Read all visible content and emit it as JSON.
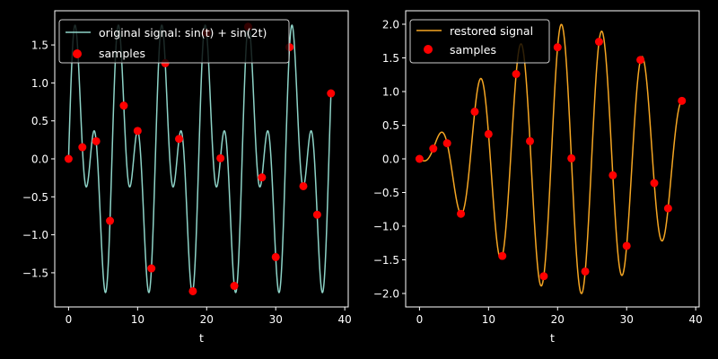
{
  "chart_data": [
    {
      "type": "line",
      "title": "",
      "xlabel": "t",
      "ylabel": "",
      "xlim": [
        -2,
        40.5
      ],
      "ylim": [
        -1.95,
        1.95
      ],
      "xticks": [
        0,
        10,
        20,
        30,
        40
      ],
      "yticks": [
        -1.5,
        -1.0,
        -0.5,
        0.0,
        0.5,
        1.0,
        1.5
      ],
      "xtick_labels": [
        "0",
        "10",
        "20",
        "30",
        "40"
      ],
      "ytick_labels": [
        "−1.5",
        "−1.0",
        "−0.5",
        "0.0",
        "0.5",
        "1.0",
        "1.5"
      ],
      "legend_position": "top-left",
      "series": [
        {
          "name": "original signal: sin(t) + sin(2t)",
          "legend_label": "original signal: sin(t) + sin(2t)",
          "kind": "line",
          "color": "#8dd3c7",
          "formula": "sin(t)+sin(2t)",
          "t_range": [
            0,
            38
          ]
        },
        {
          "name": "samples",
          "legend_label": "samples",
          "kind": "scatter",
          "color": "#ff0000",
          "x": [
            0,
            2,
            4,
            6,
            8,
            10,
            12,
            14,
            16,
            18,
            20,
            22,
            24,
            26,
            28,
            30,
            32,
            34,
            36,
            38
          ],
          "y": [
            0.0,
            0.153,
            0.232,
            -0.816,
            0.701,
            0.368,
            -1.442,
            1.26,
            0.263,
            -1.743,
            1.658,
            0.008,
            -1.673,
            1.74,
            -0.244,
            -1.293,
            1.47,
            -0.36,
            -0.735,
            0.862
          ]
        }
      ]
    },
    {
      "type": "line",
      "title": "",
      "xlabel": "t",
      "ylabel": "",
      "xlim": [
        -2,
        40.5
      ],
      "ylim": [
        -2.2,
        2.2
      ],
      "xticks": [
        0,
        10,
        20,
        30,
        40
      ],
      "yticks": [
        -2.0,
        -1.5,
        -1.0,
        -0.5,
        0.0,
        0.5,
        1.0,
        1.5,
        2.0
      ],
      "xtick_labels": [
        "0",
        "10",
        "20",
        "30",
        "40"
      ],
      "ytick_labels": [
        "−2.0",
        "−1.5",
        "−1.0",
        "−0.5",
        "0.0",
        "0.5",
        "1.0",
        "1.5",
        "2.0"
      ],
      "legend_position": "top-left",
      "series": [
        {
          "name": "restored signal",
          "legend_label": "restored signal",
          "kind": "line",
          "color": "#f5a623",
          "formula": "sinc-interpolation of samples",
          "t_range": [
            0,
            38
          ]
        },
        {
          "name": "samples",
          "legend_label": "samples",
          "kind": "scatter",
          "color": "#ff0000",
          "x": [
            0,
            2,
            4,
            6,
            8,
            10,
            12,
            14,
            16,
            18,
            20,
            22,
            24,
            26,
            28,
            30,
            32,
            34,
            36,
            38
          ],
          "y": [
            0.0,
            0.153,
            0.232,
            -0.816,
            0.701,
            0.368,
            -1.442,
            1.26,
            0.263,
            -1.743,
            1.658,
            0.008,
            -1.673,
            1.74,
            -0.244,
            -1.293,
            1.47,
            -0.36,
            -0.735,
            0.862
          ]
        }
      ]
    }
  ]
}
